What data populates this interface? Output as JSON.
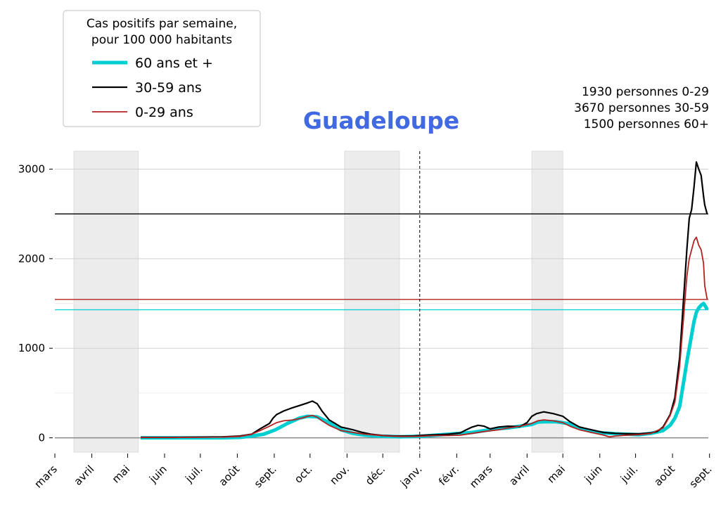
{
  "chart_data": {
    "type": "line",
    "title": "Guadeloupe",
    "title_color": "#4169e1",
    "xlabel": "",
    "ylabel": "",
    "ylim": [
      -160,
      3200
    ],
    "y_ticks": [
      0,
      1000,
      2000,
      3000
    ],
    "x_axis": {
      "range_days": [
        0,
        548
      ],
      "month_ticks": [
        {
          "label": "mars",
          "day": 0
        },
        {
          "label": "avril",
          "day": 31
        },
        {
          "label": "mai",
          "day": 61
        },
        {
          "label": "juin",
          "day": 92
        },
        {
          "label": "juil.",
          "day": 122
        },
        {
          "label": "août",
          "day": 153
        },
        {
          "label": "sept.",
          "day": 184
        },
        {
          "label": "oct.",
          "day": 214
        },
        {
          "label": "nov.",
          "day": 245
        },
        {
          "label": "déc.",
          "day": 275
        },
        {
          "label": "janv.",
          "day": 306
        },
        {
          "label": "févr.",
          "day": 337
        },
        {
          "label": "mars",
          "day": 365
        },
        {
          "label": "avril",
          "day": 396
        },
        {
          "label": "mai",
          "day": 426
        },
        {
          "label": "juin",
          "day": 457
        },
        {
          "label": "juil.",
          "day": 487
        },
        {
          "label": "août",
          "day": 518
        },
        {
          "label": "sept.",
          "day": 549
        }
      ],
      "year_boundary_day": 306
    },
    "shaded_periods": [
      [
        16,
        70
      ],
      [
        243,
        289
      ],
      [
        400,
        426
      ]
    ],
    "hlines": [
      {
        "y": 2500,
        "color": "#000000"
      },
      {
        "y": 1545,
        "color": "#b22222"
      },
      {
        "y": 1430,
        "color": "#00ced1"
      }
    ],
    "grid": "horizontal",
    "legend": {
      "position": "top-left",
      "title": "Cas positifs par semaine,\npour 100 000 habitants",
      "title_lines": [
        "Cas positifs par semaine,",
        "pour 100 000 habitants"
      ]
    },
    "annotation_lines": [
      "1930 personnes 0-29",
      "3670 personnes 30-59",
      "1500 personnes 60+"
    ],
    "series": [
      {
        "name": "60 ans et +",
        "color": "#00ced1",
        "points": [
          [
            72,
            0
          ],
          [
            100,
            0
          ],
          [
            140,
            0
          ],
          [
            155,
            5
          ],
          [
            165,
            20
          ],
          [
            175,
            40
          ],
          [
            185,
            90
          ],
          [
            195,
            160
          ],
          [
            205,
            220
          ],
          [
            212,
            240
          ],
          [
            220,
            235
          ],
          [
            230,
            170
          ],
          [
            240,
            90
          ],
          [
            250,
            50
          ],
          [
            260,
            30
          ],
          [
            270,
            20
          ],
          [
            280,
            15
          ],
          [
            290,
            12
          ],
          [
            300,
            15
          ],
          [
            310,
            20
          ],
          [
            320,
            30
          ],
          [
            330,
            40
          ],
          [
            340,
            50
          ],
          [
            350,
            60
          ],
          [
            360,
            80
          ],
          [
            370,
            100
          ],
          [
            380,
            110
          ],
          [
            390,
            130
          ],
          [
            400,
            150
          ],
          [
            405,
            175
          ],
          [
            410,
            180
          ],
          [
            420,
            180
          ],
          [
            430,
            160
          ],
          [
            440,
            110
          ],
          [
            450,
            70
          ],
          [
            460,
            55
          ],
          [
            470,
            45
          ],
          [
            480,
            40
          ],
          [
            490,
            35
          ],
          [
            500,
            50
          ],
          [
            510,
            80
          ],
          [
            516,
            140
          ],
          [
            520,
            220
          ],
          [
            524,
            350
          ],
          [
            527,
            600
          ],
          [
            530,
            850
          ],
          [
            532,
            1000
          ],
          [
            534,
            1150
          ],
          [
            536,
            1300
          ],
          [
            538,
            1400
          ],
          [
            540,
            1450
          ],
          [
            542,
            1480
          ],
          [
            544,
            1500
          ],
          [
            546,
            1460
          ],
          [
            547,
            1430
          ]
        ]
      },
      {
        "name": "30-59 ans",
        "color": "#000000",
        "points": [
          [
            72,
            5
          ],
          [
            100,
            5
          ],
          [
            140,
            10
          ],
          [
            155,
            20
          ],
          [
            165,
            40
          ],
          [
            172,
            100
          ],
          [
            180,
            160
          ],
          [
            183,
            220
          ],
          [
            186,
            260
          ],
          [
            192,
            300
          ],
          [
            198,
            330
          ],
          [
            205,
            360
          ],
          [
            212,
            390
          ],
          [
            216,
            410
          ],
          [
            220,
            380
          ],
          [
            224,
            300
          ],
          [
            230,
            200
          ],
          [
            240,
            120
          ],
          [
            250,
            90
          ],
          [
            258,
            60
          ],
          [
            265,
            40
          ],
          [
            275,
            25
          ],
          [
            285,
            20
          ],
          [
            300,
            20
          ],
          [
            310,
            30
          ],
          [
            320,
            35
          ],
          [
            330,
            40
          ],
          [
            340,
            55
          ],
          [
            345,
            90
          ],
          [
            350,
            120
          ],
          [
            355,
            140
          ],
          [
            360,
            130
          ],
          [
            365,
            100
          ],
          [
            372,
            120
          ],
          [
            380,
            130
          ],
          [
            390,
            125
          ],
          [
            396,
            170
          ],
          [
            400,
            240
          ],
          [
            404,
            270
          ],
          [
            410,
            290
          ],
          [
            418,
            270
          ],
          [
            426,
            240
          ],
          [
            432,
            180
          ],
          [
            440,
            120
          ],
          [
            450,
            90
          ],
          [
            460,
            60
          ],
          [
            470,
            50
          ],
          [
            480,
            45
          ],
          [
            490,
            45
          ],
          [
            500,
            55
          ],
          [
            505,
            70
          ],
          [
            510,
            120
          ],
          [
            516,
            260
          ],
          [
            520,
            450
          ],
          [
            524,
            900
          ],
          [
            527,
            1500
          ],
          [
            530,
            2100
          ],
          [
            532,
            2450
          ],
          [
            534,
            2550
          ],
          [
            536,
            2800
          ],
          [
            538,
            3080
          ],
          [
            540,
            3000
          ],
          [
            542,
            2930
          ],
          [
            544,
            2700
          ],
          [
            545,
            2600
          ],
          [
            547,
            2500
          ]
        ]
      },
      {
        "name": "0-29 ans",
        "color": "#b22222",
        "points": [
          [
            72,
            5
          ],
          [
            100,
            5
          ],
          [
            140,
            8
          ],
          [
            155,
            15
          ],
          [
            165,
            40
          ],
          [
            172,
            80
          ],
          [
            180,
            130
          ],
          [
            186,
            170
          ],
          [
            192,
            190
          ],
          [
            200,
            200
          ],
          [
            207,
            220
          ],
          [
            212,
            240
          ],
          [
            216,
            250
          ],
          [
            220,
            230
          ],
          [
            224,
            190
          ],
          [
            230,
            140
          ],
          [
            240,
            80
          ],
          [
            250,
            60
          ],
          [
            260,
            40
          ],
          [
            270,
            30
          ],
          [
            280,
            20
          ],
          [
            290,
            15
          ],
          [
            300,
            15
          ],
          [
            310,
            20
          ],
          [
            320,
            25
          ],
          [
            330,
            25
          ],
          [
            340,
            30
          ],
          [
            350,
            50
          ],
          [
            360,
            70
          ],
          [
            372,
            90
          ],
          [
            380,
            110
          ],
          [
            390,
            130
          ],
          [
            400,
            160
          ],
          [
            405,
            190
          ],
          [
            410,
            200
          ],
          [
            418,
            190
          ],
          [
            426,
            170
          ],
          [
            432,
            130
          ],
          [
            440,
            90
          ],
          [
            450,
            60
          ],
          [
            460,
            30
          ],
          [
            465,
            10
          ],
          [
            470,
            20
          ],
          [
            480,
            30
          ],
          [
            490,
            35
          ],
          [
            500,
            50
          ],
          [
            510,
            110
          ],
          [
            516,
            250
          ],
          [
            520,
            400
          ],
          [
            524,
            800
          ],
          [
            527,
            1300
          ],
          [
            530,
            1800
          ],
          [
            532,
            2000
          ],
          [
            534,
            2100
          ],
          [
            536,
            2200
          ],
          [
            538,
            2240
          ],
          [
            540,
            2150
          ],
          [
            542,
            2100
          ],
          [
            544,
            1950
          ],
          [
            545,
            1700
          ],
          [
            547,
            1550
          ]
        ]
      }
    ]
  }
}
